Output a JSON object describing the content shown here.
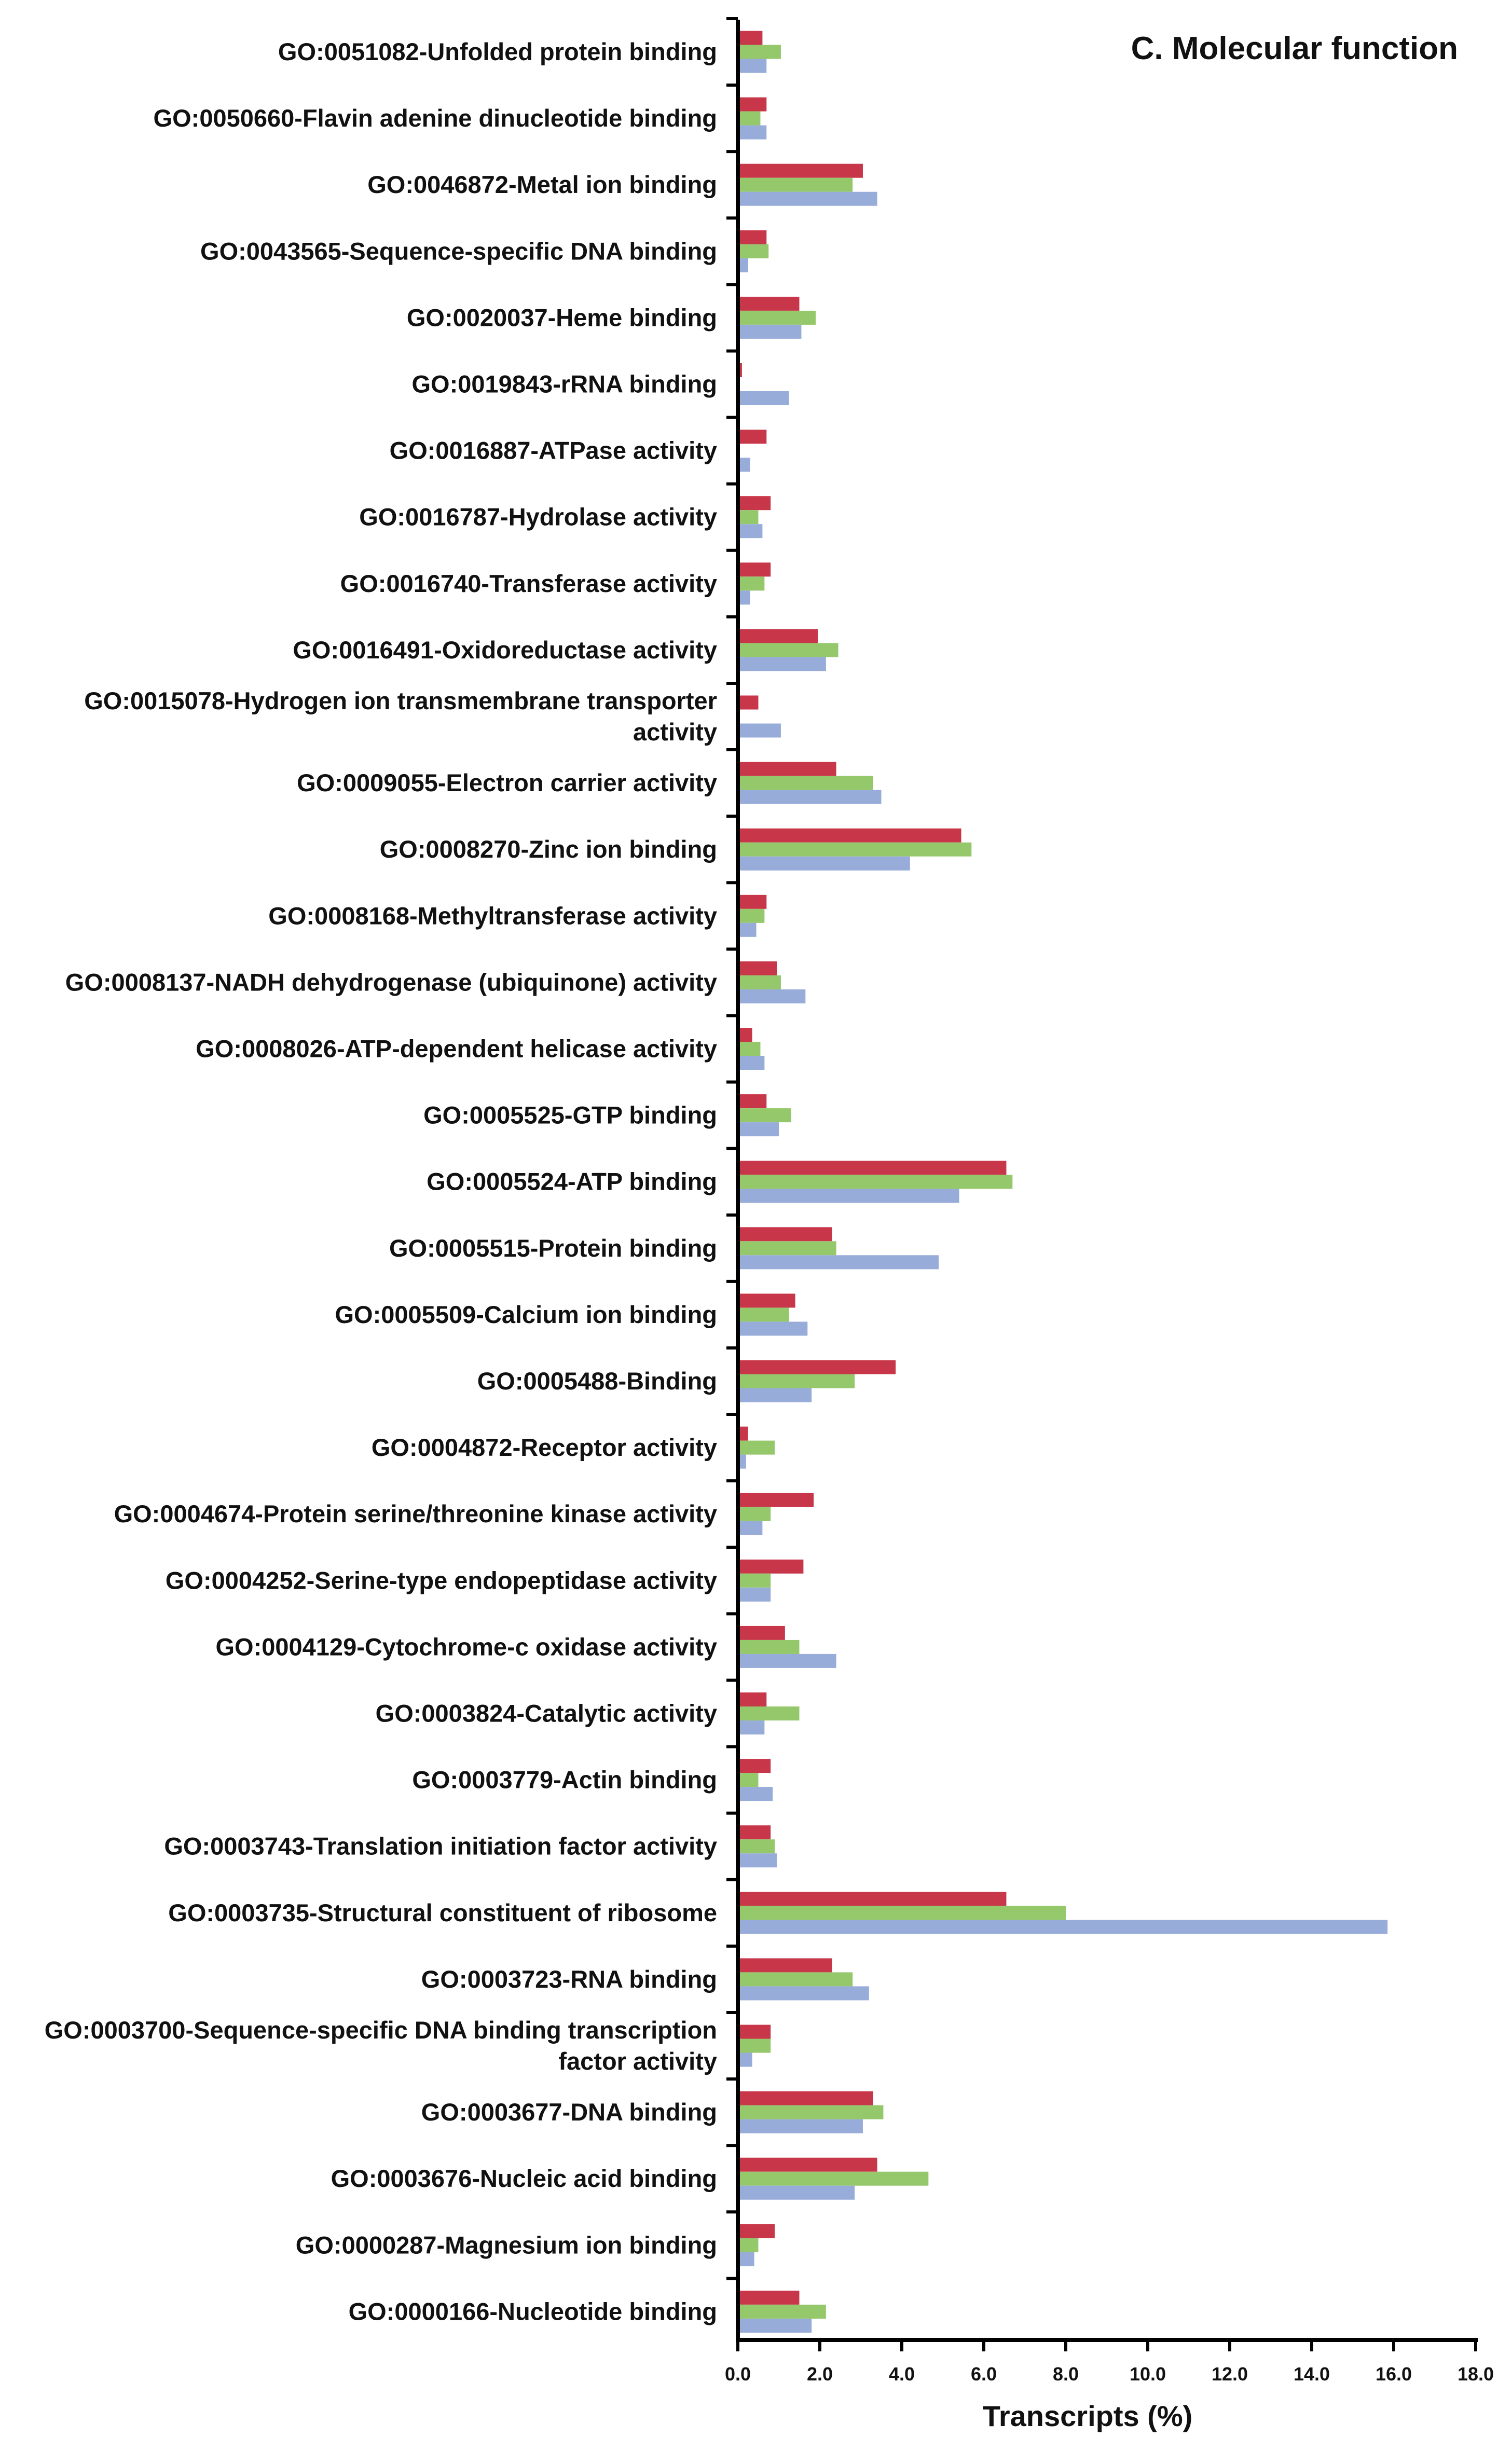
{
  "chart_data": {
    "type": "bar",
    "orientation": "horizontal",
    "title": "C. Molecular function",
    "xlabel": "Transcripts (%)",
    "ylabel": "",
    "xlim": [
      0,
      18
    ],
    "x_ticks": [
      "0.0",
      "2.0",
      "4.0",
      "6.0",
      "8.0",
      "10.0",
      "12.0",
      "14.0",
      "16.0",
      "18.0"
    ],
    "legend": "none",
    "grid": false,
    "colors": [
      "#c8364a",
      "#94c86b",
      "#98acd9"
    ],
    "categories": [
      [
        "GO:0051082-Unfolded protein binding"
      ],
      [
        "GO:0050660-Flavin adenine dinucleotide binding"
      ],
      [
        "GO:0046872-Metal ion binding"
      ],
      [
        "GO:0043565-Sequence-specific DNA binding"
      ],
      [
        "GO:0020037-Heme binding"
      ],
      [
        "GO:0019843-rRNA binding"
      ],
      [
        "GO:0016887-ATPase activity"
      ],
      [
        "GO:0016787-Hydrolase activity"
      ],
      [
        "GO:0016740-Transferase activity"
      ],
      [
        "GO:0016491-Oxidoreductase activity"
      ],
      [
        "GO:0015078-Hydrogen ion transmembrane transporter",
        "activity"
      ],
      [
        "GO:0009055-Electron carrier activity"
      ],
      [
        "GO:0008270-Zinc ion binding"
      ],
      [
        "GO:0008168-Methyltransferase activity"
      ],
      [
        "GO:0008137-NADH dehydrogenase (ubiquinone) activity"
      ],
      [
        "GO:0008026-ATP-dependent helicase activity"
      ],
      [
        "GO:0005525-GTP binding"
      ],
      [
        "GO:0005524-ATP binding"
      ],
      [
        "GO:0005515-Protein binding"
      ],
      [
        "GO:0005509-Calcium ion binding"
      ],
      [
        "GO:0005488-Binding"
      ],
      [
        "GO:0004872-Receptor activity"
      ],
      [
        "GO:0004674-Protein serine/threonine kinase activity"
      ],
      [
        "GO:0004252-Serine-type endopeptidase activity"
      ],
      [
        "GO:0004129-Cytochrome-c oxidase activity"
      ],
      [
        "GO:0003824-Catalytic activity"
      ],
      [
        "GO:0003779-Actin binding"
      ],
      [
        "GO:0003743-Translation initiation factor activity"
      ],
      [
        "GO:0003735-Structural constituent of ribosome"
      ],
      [
        "GO:0003723-RNA binding"
      ],
      [
        "GO:0003700-Sequence-specific DNA binding transcription",
        "factor activity"
      ],
      [
        "GO:0003677-DNA binding"
      ],
      [
        "GO:0003676-Nucleic acid binding"
      ],
      [
        "GO:0000287-Magnesium ion binding"
      ],
      [
        "GO:0000166-Nucleotide binding"
      ]
    ],
    "series": [
      {
        "values": [
          0.6,
          0.7,
          3.05,
          0.7,
          1.5,
          0.1,
          0.7,
          0.8,
          0.8,
          1.95,
          0.5,
          2.4,
          5.45,
          0.7,
          0.95,
          0.35,
          0.7,
          6.55,
          2.3,
          1.4,
          3.85,
          0.25,
          1.85,
          1.6,
          1.15,
          0.7,
          0.8,
          0.8,
          6.55,
          2.3,
          0.8,
          3.3,
          3.4,
          0.9,
          1.5
        ]
      },
      {
        "values": [
          1.05,
          0.55,
          2.8,
          0.75,
          1.9,
          0.05,
          0.05,
          0.5,
          0.65,
          2.45,
          0.05,
          3.3,
          5.7,
          0.65,
          1.05,
          0.55,
          1.3,
          6.7,
          2.4,
          1.25,
          2.85,
          0.9,
          0.8,
          0.8,
          1.5,
          1.5,
          0.5,
          0.9,
          8.0,
          2.8,
          0.8,
          3.55,
          4.65,
          0.5,
          2.15
        ]
      },
      {
        "values": [
          0.7,
          0.7,
          3.4,
          0.25,
          1.55,
          1.25,
          0.3,
          0.6,
          0.3,
          2.15,
          1.05,
          3.5,
          4.2,
          0.45,
          1.65,
          0.65,
          1.0,
          5.4,
          4.9,
          1.7,
          1.8,
          0.2,
          0.6,
          0.8,
          2.4,
          0.65,
          0.85,
          0.95,
          15.85,
          3.2,
          0.35,
          3.05,
          2.85,
          0.4,
          1.8
        ]
      }
    ]
  }
}
